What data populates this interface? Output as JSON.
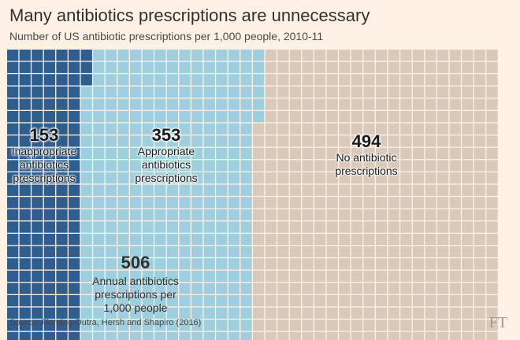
{
  "title": "Many antibiotics prescriptions are unnecessary",
  "subtitle": "Number of US antibiotic prescriptions per 1,000 people, 2010-11",
  "chart_data": {
    "type": "waffle",
    "title": "Many antibiotics prescriptions are unnecessary",
    "subtitle": "Number of US antibiotic prescriptions per 1,000 people, 2010-11",
    "unit": "prescriptions per 1,000 people",
    "total_cells": 1000,
    "categories": [
      "Inappropriate antibiotics prescriptions",
      "Appropriate antibiotics prescriptions",
      "No antibiotic prescriptions"
    ],
    "values": [
      153,
      353,
      494
    ],
    "colors": [
      "#2e5d8e",
      "#9fcfde",
      "#d8c9bb"
    ],
    "labels": [
      {
        "value": "153",
        "lines": [
          "Inappropriate",
          "antibiotics",
          "prescriptions"
        ]
      },
      {
        "value": "353",
        "lines": [
          "Appropriate",
          "antibiotics",
          "prescriptions"
        ]
      },
      {
        "value": "494",
        "lines": [
          "No antibiotic",
          "prescriptions"
        ]
      }
    ],
    "total": {
      "value": "506",
      "lines": [
        "Annual antibiotics",
        "prescriptions per",
        "1,000 people"
      ]
    }
  },
  "source": "Source: Fleming-Dutra, Hersh and Shapiro (2016)",
  "logo": "FT"
}
